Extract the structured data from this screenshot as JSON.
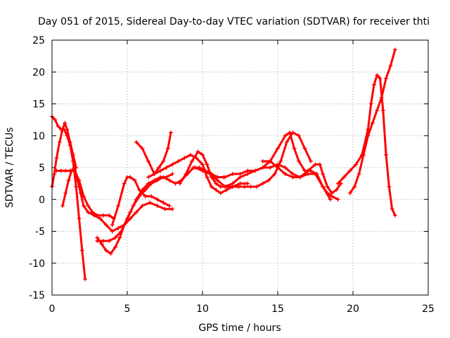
{
  "chart_data": {
    "type": "scatter",
    "title": "Day 051 of 2015, Sidereal Day-to-day VTEC variation (SDTVAR) for receiver thti",
    "xlabel": "GPS time / hours",
    "ylabel": "SDTVAR / TECUs",
    "xlim": [
      0,
      25
    ],
    "ylim": [
      -15,
      25
    ],
    "xticks": [
      0,
      5,
      10,
      15,
      20,
      25
    ],
    "yticks": [
      -15,
      -10,
      -5,
      0,
      5,
      10,
      15,
      20,
      25
    ],
    "grid": true,
    "marker": "plus",
    "color": "#ff0000",
    "series": [
      {
        "x": [
          0.0,
          0.2,
          0.4,
          0.6,
          0.8,
          1.0,
          1.2,
          1.4,
          1.6,
          1.8,
          2.0,
          2.2
        ],
        "y": [
          13,
          12.5,
          11.5,
          11,
          11,
          10,
          8.5,
          6,
          2,
          -3,
          -8,
          -12.5
        ]
      },
      {
        "x": [
          0.0,
          0.15,
          0.3,
          0.5,
          0.7,
          0.85,
          1.0,
          1.2,
          1.4,
          1.6
        ],
        "y": [
          2,
          4,
          6.5,
          9,
          11,
          12,
          11,
          9,
          7,
          5
        ]
      },
      {
        "x": [
          0.7,
          0.9,
          1.1,
          1.3,
          1.5,
          1.7,
          1.9,
          2.1,
          2.4,
          2.8,
          3.2,
          3.6,
          4.0,
          4.4,
          4.8,
          5.2,
          5.6,
          6.0,
          6.5,
          7.0,
          7.5,
          8.0
        ],
        "y": [
          -1,
          1,
          3,
          4.5,
          5,
          3,
          1,
          -1,
          -2,
          -2.5,
          -3,
          -4,
          -5,
          -4.5,
          -4,
          -3,
          -2,
          -1,
          -0.5,
          -1,
          -1.5,
          -1.5
        ]
      },
      {
        "x": [
          0.3,
          0.6,
          0.9,
          1.2,
          1.5,
          1.8,
          2.1,
          2.4,
          2.7,
          3.0,
          3.4,
          3.8,
          4.1
        ],
        "y": [
          4.5,
          4.5,
          4.5,
          4.5,
          4.5,
          3,
          0.5,
          -1,
          -2,
          -2.5,
          -2.5,
          -2.5,
          -3
        ]
      },
      {
        "x": [
          3.0,
          3.3,
          3.6,
          3.9,
          4.2,
          4.5,
          4.8,
          5.2,
          5.6,
          6.0,
          6.4,
          6.8,
          7.2,
          7.6,
          8.0
        ],
        "y": [
          -6,
          -7,
          -8,
          -8.5,
          -7.5,
          -6,
          -4,
          -2,
          0,
          1.5,
          2.5,
          3,
          3.5,
          3.5,
          4
        ]
      },
      {
        "x": [
          4.0,
          4.4,
          4.8,
          5.0,
          5.2,
          5.5,
          5.8,
          6.2,
          6.6,
          7.0,
          7.4,
          7.8
        ],
        "y": [
          -4,
          -1,
          2.5,
          3.5,
          3.5,
          3,
          1.5,
          0.5,
          0.5,
          0,
          -0.5,
          -1
        ]
      },
      {
        "x": [
          3.0,
          3.4,
          3.8,
          4.2,
          4.6,
          5.0,
          5.4,
          5.8,
          6.2,
          6.6,
          7.0,
          7.4,
          7.8,
          8.2,
          8.6,
          9.0,
          9.4,
          9.8,
          10.2,
          10.6,
          11.0,
          11.4
        ],
        "y": [
          -6.5,
          -6.5,
          -6.5,
          -6,
          -5,
          -3,
          -1,
          0.5,
          1.5,
          2.5,
          3,
          3.5,
          3,
          2.5,
          3,
          4,
          5,
          5,
          4.5,
          4,
          3.5,
          3.5
        ]
      },
      {
        "x": [
          5.6,
          6.0,
          6.4,
          6.8,
          7.1,
          7.4,
          7.7,
          7.9
        ],
        "y": [
          9,
          8,
          6,
          4,
          5,
          6,
          8,
          10.5
        ]
      },
      {
        "x": [
          6.4,
          6.8,
          7.2,
          7.6,
          8.0,
          8.4,
          8.8,
          9.2,
          9.6,
          10.0,
          10.3,
          10.6,
          10.9,
          11.2,
          11.6,
          12.0,
          12.5,
          13.0
        ],
        "y": [
          3.5,
          4,
          4.5,
          5,
          5.5,
          6,
          6.5,
          7,
          6.5,
          5.5,
          3.5,
          2,
          1.5,
          1,
          1.5,
          2,
          2.5,
          2.5
        ]
      },
      {
        "x": [
          8.5,
          8.9,
          9.3,
          9.7,
          10.0,
          10.3,
          10.6,
          10.9,
          11.2,
          11.6,
          12.0,
          12.4,
          12.8,
          13.2,
          13.6,
          14.0,
          14.4,
          14.8,
          15.2,
          15.6,
          16.0,
          16.4,
          16.8,
          17.2
        ],
        "y": [
          2.5,
          4,
          6,
          7.5,
          7,
          5.5,
          3.5,
          2.5,
          2,
          2,
          2,
          2,
          2,
          2,
          2,
          2.5,
          3,
          4,
          6,
          9,
          10.5,
          10,
          8,
          6
        ]
      },
      {
        "x": [
          9.5,
          10.0,
          10.5,
          11.0,
          11.5,
          12.0,
          12.5,
          13.0,
          13.5,
          14.0,
          14.5,
          15.0,
          15.5,
          16.0,
          16.5,
          17.0,
          17.5,
          18.0,
          18.5
        ],
        "y": [
          5,
          4.5,
          4,
          3,
          2,
          2.5,
          3.5,
          4,
          4.5,
          5,
          5,
          5.5,
          5,
          4,
          3.5,
          4,
          4,
          2,
          0
        ]
      },
      {
        "x": [
          11.0,
          11.5,
          12.0,
          12.5,
          13.0,
          13.5,
          14.0,
          14.5,
          15.0,
          15.5,
          15.8,
          16.1,
          16.4,
          16.8,
          17.2,
          17.6,
          18.0,
          18.3,
          18.6,
          19.0
        ],
        "y": [
          3.5,
          3.5,
          4,
          4,
          4.5,
          4.5,
          5,
          6,
          8,
          10,
          10.5,
          8,
          6,
          4.5,
          4.5,
          4,
          2,
          1,
          0.5,
          0
        ]
      },
      {
        "x": [
          14.0,
          14.5,
          15.0,
          15.5,
          16.0,
          16.5,
          17.0,
          17.5,
          17.8,
          18.0,
          18.3,
          18.6,
          18.9,
          19.2
        ],
        "y": [
          6,
          6,
          5,
          4,
          3.5,
          3.5,
          4.5,
          5.5,
          5.5,
          4,
          2,
          1,
          1.5,
          2.5
        ]
      },
      {
        "x": [
          19.0,
          19.4,
          19.8,
          20.2,
          20.6,
          21.0,
          21.2,
          21.4,
          21.6,
          21.8,
          22.0,
          22.2,
          22.4,
          22.6,
          22.8
        ],
        "y": [
          2.5,
          3.5,
          4.5,
          5.5,
          7,
          11,
          15,
          18,
          19.5,
          19,
          14,
          7,
          2,
          -1.5,
          -2.5
        ]
      },
      {
        "x": [
          19.8,
          20.1,
          20.4,
          20.7,
          21.0,
          21.3,
          21.6,
          21.9,
          22.2,
          22.5,
          22.8
        ],
        "y": [
          1,
          2,
          4,
          7,
          10,
          12,
          14,
          16,
          19,
          21,
          23.5
        ]
      }
    ]
  }
}
